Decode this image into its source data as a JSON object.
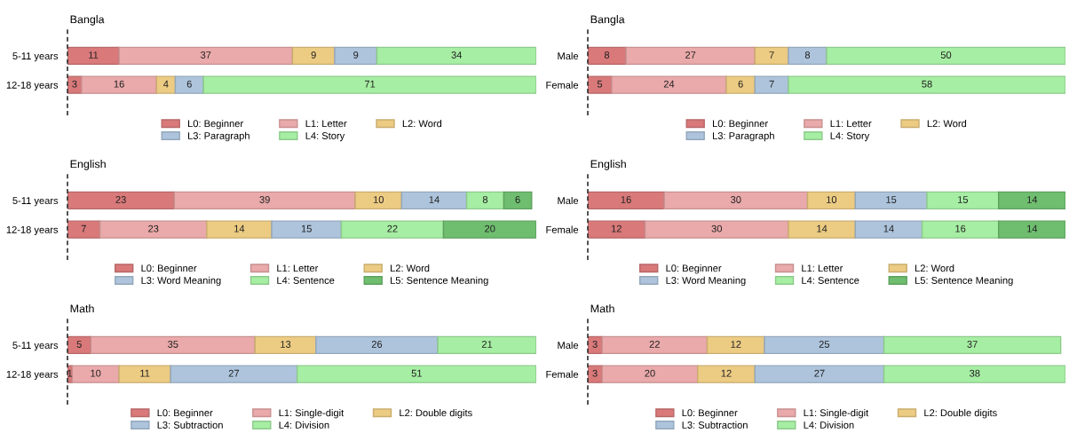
{
  "chart_data": [
    {
      "type": "bar",
      "orientation": "horizontal",
      "stacked": true,
      "data_labels": true,
      "title": "Bangla",
      "categories": [
        "5-11 years",
        "12-18 years"
      ],
      "legend": "bottom",
      "tick_labels": "y",
      "grid": false,
      "ref_lines": [
        {
          "axis": "x",
          "value": 0,
          "line_style": "dashed",
          "color": "#333333"
        }
      ],
      "series": [
        {
          "name": "L0: Beginner",
          "color": "#d9797a",
          "values": [
            11,
            3
          ]
        },
        {
          "name": "L1: Letter",
          "color": "#eaa9aa",
          "values": [
            37,
            16
          ]
        },
        {
          "name": "L2: Word",
          "color": "#eccb83",
          "values": [
            9,
            4
          ]
        },
        {
          "name": "L3: Paragraph",
          "color": "#adc4dc",
          "values": [
            9,
            6
          ]
        },
        {
          "name": "L4: Story",
          "color": "#a6eea3",
          "values": [
            34,
            71
          ]
        }
      ]
    },
    {
      "type": "bar",
      "orientation": "horizontal",
      "stacked": true,
      "data_labels": true,
      "title": "Bangla",
      "categories": [
        "Male",
        "Female"
      ],
      "legend": "bottom",
      "tick_labels": "y",
      "grid": false,
      "ref_lines": [
        {
          "axis": "x",
          "value": 0,
          "line_style": "dashed",
          "color": "#333333"
        }
      ],
      "series": [
        {
          "name": "L0: Beginner",
          "color": "#d9797a",
          "values": [
            8,
            5
          ]
        },
        {
          "name": "L1: Letter",
          "color": "#eaa9aa",
          "values": [
            27,
            24
          ]
        },
        {
          "name": "L2: Word",
          "color": "#eccb83",
          "values": [
            7,
            6
          ]
        },
        {
          "name": "L3: Paragraph",
          "color": "#adc4dc",
          "values": [
            8,
            7
          ]
        },
        {
          "name": "L4: Story",
          "color": "#a6eea3",
          "values": [
            50,
            58
          ]
        }
      ]
    },
    {
      "type": "bar",
      "orientation": "horizontal",
      "stacked": true,
      "data_labels": true,
      "title": "English",
      "categories": [
        "5-11 years",
        "12-18 years"
      ],
      "legend": "bottom",
      "tick_labels": "y",
      "grid": false,
      "ref_lines": [
        {
          "axis": "x",
          "value": 0,
          "line_style": "dashed",
          "color": "#333333"
        }
      ],
      "series": [
        {
          "name": "L0: Beginner",
          "color": "#d9797a",
          "values": [
            23,
            7
          ]
        },
        {
          "name": "L1: Letter",
          "color": "#eaa9aa",
          "values": [
            39,
            23
          ]
        },
        {
          "name": "L2: Word",
          "color": "#eccb83",
          "values": [
            10,
            14
          ]
        },
        {
          "name": "L3: Word Meaning",
          "color": "#adc4dc",
          "values": [
            14,
            15
          ]
        },
        {
          "name": "L4: Sentence",
          "color": "#a6eea3",
          "values": [
            8,
            22
          ]
        },
        {
          "name": "L5: Sentence Meaning",
          "color": "#6fbd6f",
          "values": [
            6,
            20
          ]
        }
      ]
    },
    {
      "type": "bar",
      "orientation": "horizontal",
      "stacked": true,
      "data_labels": true,
      "title": "English",
      "categories": [
        "Male",
        "Female"
      ],
      "legend": "bottom",
      "tick_labels": "y",
      "grid": false,
      "ref_lines": [
        {
          "axis": "x",
          "value": 0,
          "line_style": "dashed",
          "color": "#333333"
        }
      ],
      "series": [
        {
          "name": "L0: Beginner",
          "color": "#d9797a",
          "values": [
            16,
            12
          ]
        },
        {
          "name": "L1: Letter",
          "color": "#eaa9aa",
          "values": [
            30,
            30
          ]
        },
        {
          "name": "L2: Word",
          "color": "#eccb83",
          "values": [
            10,
            14
          ]
        },
        {
          "name": "L3: Word Meaning",
          "color": "#adc4dc",
          "values": [
            15,
            14
          ]
        },
        {
          "name": "L4: Sentence",
          "color": "#a6eea3",
          "values": [
            15,
            16
          ]
        },
        {
          "name": "L5: Sentence Meaning",
          "color": "#6fbd6f",
          "values": [
            14,
            14
          ]
        }
      ]
    },
    {
      "type": "bar",
      "orientation": "horizontal",
      "stacked": true,
      "data_labels": true,
      "title": "Math",
      "categories": [
        "5-11 years",
        "12-18 years"
      ],
      "legend": "bottom",
      "tick_labels": "y",
      "grid": false,
      "ref_lines": [
        {
          "axis": "x",
          "value": 0,
          "line_style": "dashed",
          "color": "#333333"
        }
      ],
      "series": [
        {
          "name": "L0: Beginner",
          "color": "#d9797a",
          "values": [
            5,
            1
          ]
        },
        {
          "name": "L1: Single-digit",
          "color": "#eaa9aa",
          "values": [
            35,
            10
          ]
        },
        {
          "name": "L2: Double digits",
          "color": "#eccb83",
          "values": [
            13,
            11
          ]
        },
        {
          "name": "L3: Subtraction",
          "color": "#adc4dc",
          "values": [
            26,
            27
          ]
        },
        {
          "name": "L4: Division",
          "color": "#a6eea3",
          "values": [
            21,
            51
          ]
        }
      ]
    },
    {
      "type": "bar",
      "orientation": "horizontal",
      "stacked": true,
      "data_labels": true,
      "title": "Math",
      "categories": [
        "Male",
        "Female"
      ],
      "legend": "bottom",
      "tick_labels": "y",
      "grid": false,
      "ref_lines": [
        {
          "axis": "x",
          "value": 0,
          "line_style": "dashed",
          "color": "#333333"
        }
      ],
      "series": [
        {
          "name": "L0: Beginner",
          "color": "#d9797a",
          "values": [
            3,
            3
          ]
        },
        {
          "name": "L1: Single-digit",
          "color": "#eaa9aa",
          "values": [
            22,
            20
          ]
        },
        {
          "name": "L2: Double digits",
          "color": "#eccb83",
          "values": [
            12,
            12
          ]
        },
        {
          "name": "L3: Subtraction",
          "color": "#adc4dc",
          "values": [
            25,
            27
          ]
        },
        {
          "name": "L4: Division",
          "color": "#a6eea3",
          "values": [
            37,
            38
          ]
        }
      ]
    }
  ]
}
